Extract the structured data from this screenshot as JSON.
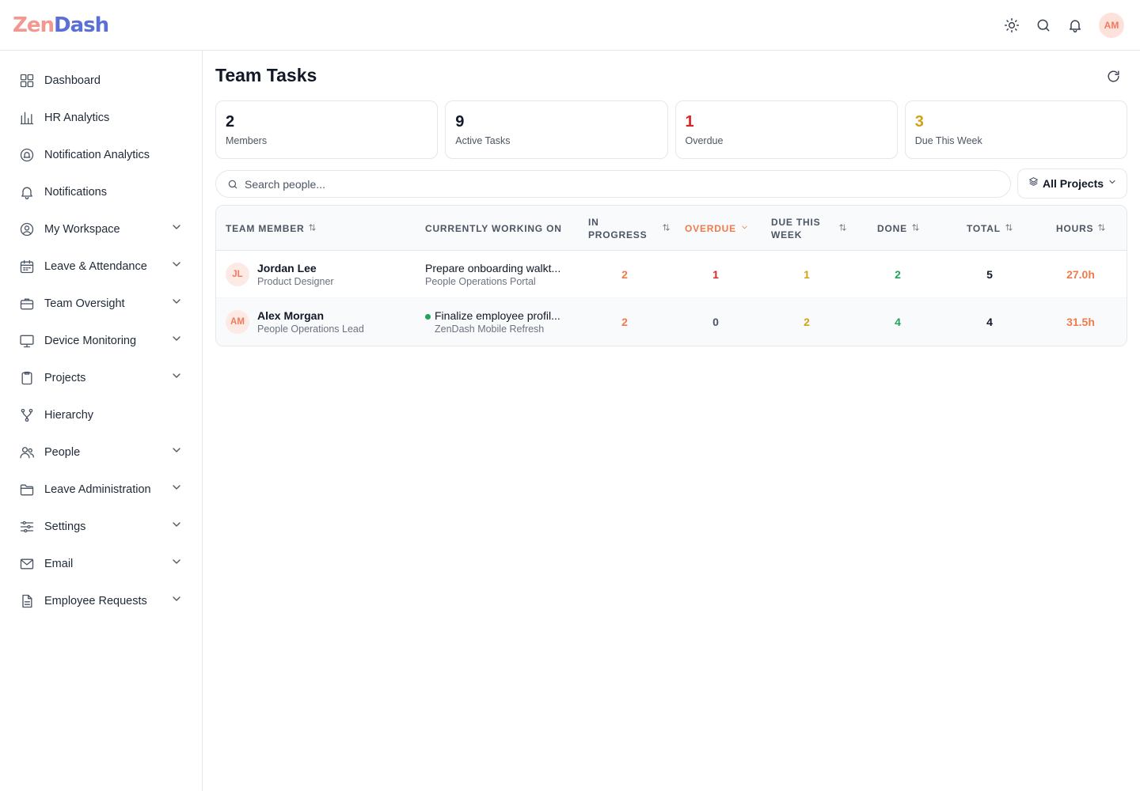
{
  "app": {
    "logo_part1": "Zen",
    "logo_part2": "Dash"
  },
  "topbar": {
    "avatar_initials": "AM",
    "icons": [
      "sun-icon",
      "search-icon",
      "bell-icon"
    ]
  },
  "sidebar": {
    "items": [
      {
        "label": "Dashboard",
        "icon": "grid-icon",
        "expandable": false
      },
      {
        "label": "HR Analytics",
        "icon": "bar-chart-icon",
        "expandable": false
      },
      {
        "label": "Notification Analytics",
        "icon": "bell-circle-icon",
        "expandable": false
      },
      {
        "label": "Notifications",
        "icon": "bell-icon",
        "expandable": false
      },
      {
        "label": "My Workspace",
        "icon": "user-circle-icon",
        "expandable": true
      },
      {
        "label": "Leave & Attendance",
        "icon": "calendar-icon",
        "expandable": true
      },
      {
        "label": "Team Oversight",
        "icon": "briefcase-icon",
        "expandable": true
      },
      {
        "label": "Device Monitoring",
        "icon": "monitor-icon",
        "expandable": true
      },
      {
        "label": "Projects",
        "icon": "clipboard-icon",
        "expandable": true
      },
      {
        "label": "Hierarchy",
        "icon": "hierarchy-icon",
        "expandable": false
      },
      {
        "label": "People",
        "icon": "users-icon",
        "expandable": true
      },
      {
        "label": "Leave Administration",
        "icon": "folder-icon",
        "expandable": true
      },
      {
        "label": "Settings",
        "icon": "sliders-icon",
        "expandable": true
      },
      {
        "label": "Email",
        "icon": "mail-icon",
        "expandable": true
      },
      {
        "label": "Employee Requests",
        "icon": "document-icon",
        "expandable": true
      }
    ]
  },
  "main": {
    "title": "Team Tasks",
    "stats": [
      {
        "value": "2",
        "label": "Members"
      },
      {
        "value": "9",
        "label": "Active Tasks"
      },
      {
        "value": "1",
        "label": "Overdue"
      },
      {
        "value": "3",
        "label": "Due This Week"
      }
    ],
    "search": {
      "placeholder": "Search people..."
    },
    "project_filter": {
      "label": "All Projects"
    },
    "table": {
      "headers": {
        "member": "Team Member",
        "working": "Currently Working On",
        "in_progress_1": "In",
        "in_progress_2": "Progress",
        "overdue": "Overdue",
        "due_1": "Due This",
        "due_2": "Week",
        "done": "Done",
        "total": "Total",
        "hours": "Hours"
      },
      "rows": [
        {
          "initials": "JL",
          "name": "Jordan Lee",
          "role": "Product Designer",
          "task": "Prepare onboarding walkt...",
          "project": "People Operations Portal",
          "in_progress": "2",
          "overdue": "1",
          "due": "1",
          "done": "2",
          "total": "5",
          "hours": "27.0h"
        },
        {
          "initials": "AM",
          "name": "Alex Morgan",
          "role": "People Operations Lead",
          "task": "Finalize employee profil...",
          "project": "ZenDash Mobile Refresh",
          "in_progress": "2",
          "overdue": "0",
          "due": "2",
          "done": "4",
          "total": "4",
          "hours": "31.5h"
        }
      ]
    }
  },
  "colors": {
    "accent": "#f07a4a",
    "overdue": "#dc2626",
    "due": "#d4a017",
    "done": "#22a35a"
  }
}
